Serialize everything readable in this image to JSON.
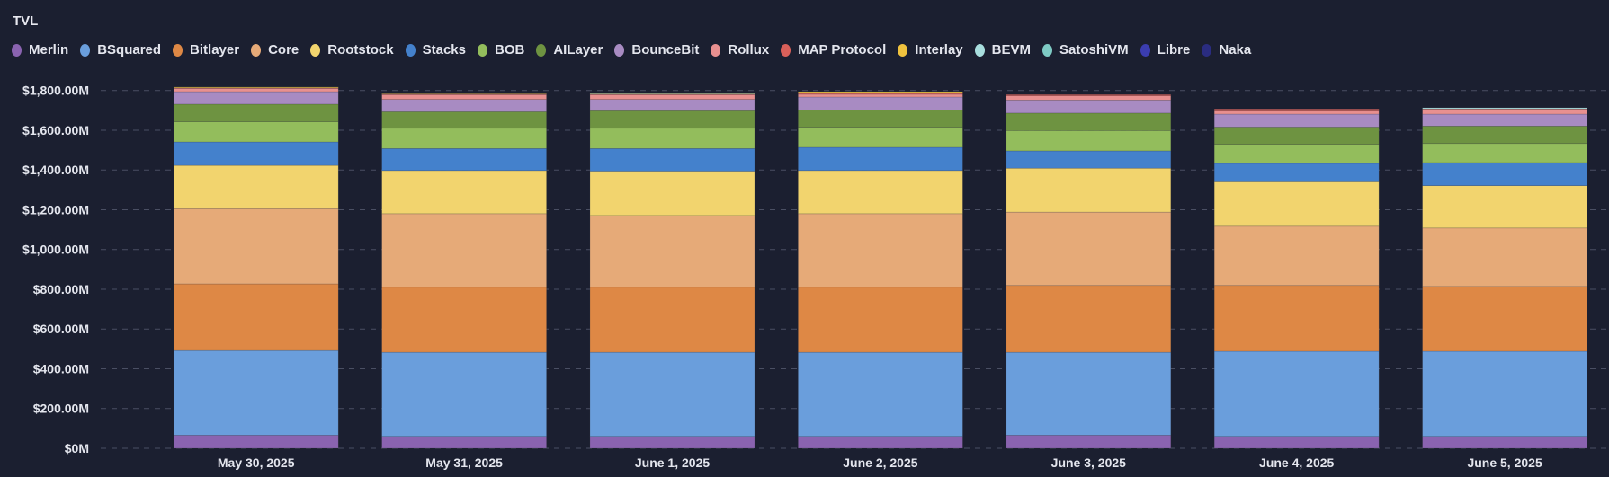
{
  "chart_data": {
    "type": "bar",
    "stacked": true,
    "title": "TVL",
    "xlabel": "",
    "ylabel": "",
    "ylim": [
      0,
      1800
    ],
    "y_ticks": [
      0,
      200,
      400,
      600,
      800,
      1000,
      1200,
      1400,
      1600,
      1800
    ],
    "y_tick_labels": [
      "$0M",
      "$200.00M",
      "$400.00M",
      "$600.00M",
      "$800.00M",
      "$1,000.00M",
      "$1,200.00M",
      "$1,400.00M",
      "$1,600.00M",
      "$1,800.00M"
    ],
    "grid": true,
    "legend_position": "top-left",
    "categories": [
      "May 30, 2025",
      "May 31, 2025",
      "June 1, 2025",
      "June 2, 2025",
      "June 3, 2025",
      "June 4, 2025",
      "June 5, 2025"
    ],
    "series": [
      {
        "name": "Merlin",
        "color": "#8a63b0",
        "values": [
          66,
          60,
          60,
          60,
          66,
          60,
          60
        ]
      },
      {
        "name": "BSquared",
        "color": "#6a9edc",
        "values": [
          426,
          423,
          423,
          423,
          417,
          428,
          428
        ]
      },
      {
        "name": "Bitlayer",
        "color": "#de8845",
        "values": [
          335,
          327,
          327,
          327,
          336,
          331,
          326
        ]
      },
      {
        "name": "Core",
        "color": "#e6aa78",
        "values": [
          378,
          370,
          361,
          370,
          369,
          298,
          294
        ]
      },
      {
        "name": "Rootstock",
        "color": "#f2d46e",
        "values": [
          218,
          217,
          223,
          217,
          221,
          223,
          213
        ]
      },
      {
        "name": "Stacks",
        "color": "#4481cc",
        "values": [
          118,
          111,
          114,
          117,
          87,
          93,
          116
        ]
      },
      {
        "name": "BOB",
        "color": "#93bd5c",
        "values": [
          101,
          102,
          102,
          101,
          102,
          96,
          96
        ]
      },
      {
        "name": "AILayer",
        "color": "#6e9341",
        "values": [
          89,
          83,
          88,
          87,
          88,
          87,
          88
        ]
      },
      {
        "name": "BounceBit",
        "color": "#a88bc2",
        "values": [
          63,
          62,
          57,
          65,
          66,
          65,
          60
        ]
      },
      {
        "name": "Rollux",
        "color": "#e89090",
        "values": [
          16,
          24,
          24,
          14,
          21,
          15,
          21
        ]
      },
      {
        "name": "MAP Protocol",
        "color": "#d9605a",
        "values": [
          3,
          3,
          2,
          7,
          6,
          11,
          5
        ]
      },
      {
        "name": "Interlay",
        "color": "#f0c23e",
        "values": [
          4,
          2,
          2,
          6,
          0,
          0,
          0
        ]
      },
      {
        "name": "BEVM",
        "color": "#a8dede",
        "values": [
          0,
          0,
          2,
          0,
          0,
          0,
          6
        ]
      },
      {
        "name": "SatoshiVM",
        "color": "#7ecac4",
        "values": [
          0,
          0,
          0,
          0,
          0,
          0,
          0
        ]
      },
      {
        "name": "Libre",
        "color": "#3b3db0",
        "values": [
          0,
          0,
          0,
          0,
          0,
          0,
          0
        ]
      },
      {
        "name": "Naka",
        "color": "#2a2c80",
        "values": [
          0,
          0,
          0,
          0,
          0,
          0,
          0
        ]
      }
    ]
  }
}
